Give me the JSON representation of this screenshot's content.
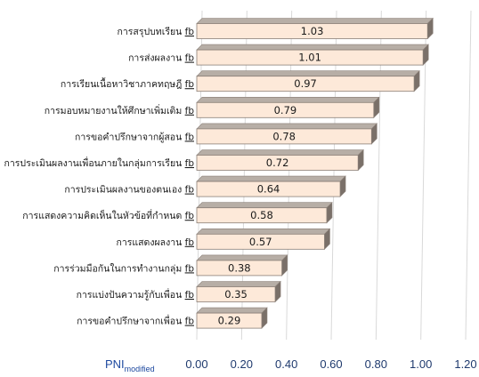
{
  "chart_data": {
    "type": "bar",
    "orientation": "horizontal",
    "style": "3d",
    "categories": [
      "การสรุปบทเรียน",
      "การส่งผลงาน",
      "การเรียนเนื้อหาวิชาภาคทฤษฎี",
      "การมอบหมายงานให้ศึกษาเพิ่มเติม",
      "การขอคำปรึกษาจากผู้สอน",
      "การประเมินผลงานเพื่อนภายในกลุ่มการเรียน",
      "การประเมินผลงานของตนเอง",
      "การแสดงความคิดเห็นในหัวข้อที่กำหนด",
      "การแสดงผลงาน",
      "การร่วมมือกันในการทำงานกลุ่ม",
      "การแบ่งปันความรู้กับเพื่อน",
      "การขอคำปรึกษาจากเพื่อน"
    ],
    "category_suffix": "fb",
    "values": [
      1.03,
      1.01,
      0.97,
      0.79,
      0.78,
      0.72,
      0.64,
      0.58,
      0.57,
      0.38,
      0.35,
      0.29
    ],
    "value_labels": [
      "1.03",
      "1.01",
      "0.97",
      "0.79",
      "0.78",
      "0.72",
      "0.64",
      "0.58",
      "0.57",
      "0.38",
      "0.35",
      "0.29"
    ],
    "xlabel": "PNI",
    "xlabel_subscript": "modified",
    "xlim": [
      0,
      1.2
    ],
    "xticks": [
      0,
      0.2,
      0.4,
      0.6,
      0.8,
      1.0,
      1.2
    ],
    "xtick_labels": [
      "0.00",
      "0.20",
      "0.40",
      "0.60",
      "0.80",
      "1.00",
      "1.20"
    ],
    "grid": true,
    "bar_colors": {
      "front": "#fde9d9",
      "top": "#b7aea6",
      "side": "#7a7069",
      "edge": "#8a7f77"
    }
  }
}
